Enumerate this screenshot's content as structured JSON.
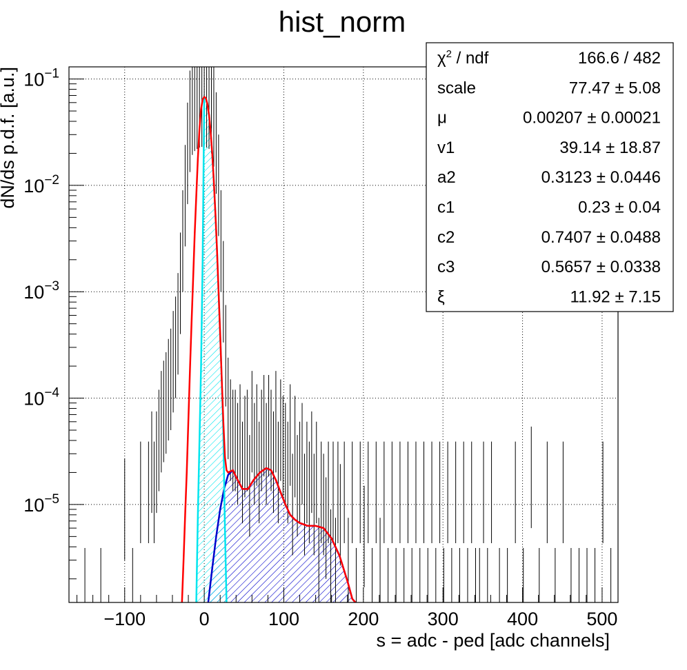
{
  "chart_data": {
    "type": "histogram",
    "title": "hist_norm",
    "xlabel": "s = adc - ped [adc channels]",
    "ylabel": "dN/ds p.d.f. [a.u.]",
    "xlim": [
      -170,
      520
    ],
    "ylim": [
      1.2e-06,
      0.13
    ],
    "y_scale": "log",
    "grid": true,
    "x_ticks": [
      -100,
      0,
      100,
      200,
      300,
      400,
      500
    ],
    "x_tick_labels": [
      "−100",
      "0",
      "100",
      "200",
      "300",
      "400",
      "500"
    ],
    "y_ticks": [
      {
        "value": 0.1,
        "base": "10",
        "exp": "−1"
      },
      {
        "value": 0.01,
        "base": "10",
        "exp": "−2"
      },
      {
        "value": 0.001,
        "base": "10",
        "exp": "−3"
      },
      {
        "value": 0.0001,
        "base": "10",
        "exp": "−4"
      },
      {
        "value": 1e-05,
        "base": "10",
        "exp": "−5"
      }
    ],
    "colors": {
      "data": "#000000",
      "total_fit": "#ff0000",
      "pedestal": "#00e5ee",
      "signal": "#0000cc",
      "grid": "#000000"
    },
    "series": [
      {
        "role": "data",
        "x": [
          -150,
          -130,
          -100,
          -90,
          -80,
          -70,
          -66,
          -63,
          -60,
          -57,
          -54,
          -51,
          -48,
          -45,
          -42,
          -39,
          -36,
          -33,
          -30,
          -27,
          -24,
          -21,
          -18,
          -15,
          -12,
          -9,
          -6,
          -3,
          0,
          3,
          6,
          9,
          12,
          15,
          18,
          21,
          24,
          27,
          30,
          33,
          36,
          39,
          42,
          45,
          48,
          51,
          54,
          57,
          60,
          63,
          66,
          69,
          72,
          75,
          78,
          81,
          84,
          87,
          90,
          93,
          96,
          99,
          102,
          105,
          108,
          111,
          114,
          117,
          120,
          123,
          126,
          129,
          132,
          135,
          138,
          141,
          144,
          147,
          150,
          153,
          156,
          159,
          162,
          165,
          168,
          171,
          176,
          181,
          186,
          191,
          196,
          201,
          206,
          211,
          216,
          221,
          226,
          231,
          236,
          241,
          246,
          251,
          256,
          261,
          266,
          271,
          276,
          281,
          286,
          291,
          296,
          301,
          306,
          311,
          316,
          321,
          326,
          331,
          336,
          341,
          346,
          351,
          356,
          361,
          371,
          381,
          391,
          401,
          411,
          421,
          431,
          441,
          451,
          461,
          471,
          481,
          491,
          501,
          511,
          518
        ],
        "y": [
          1.3e-06,
          1.3e-06,
          9e-06,
          1.3e-06,
          1.3e-05,
          1.3e-05,
          2.5e-05,
          1.3e-05,
          2.5e-05,
          4e-05,
          6e-05,
          7.5e-05,
          9e-05,
          0.00012,
          0.00015,
          0.00022,
          0.0003,
          0.0005,
          0.0012,
          0.003,
          0.008,
          0.02,
          0.04,
          0.058,
          0.063,
          0.066,
          0.068,
          0.069,
          0.07,
          0.068,
          0.066,
          0.06,
          0.045,
          0.025,
          0.01,
          0.003,
          0.001,
          0.00025,
          8e-05,
          5e-05,
          4e-05,
          4e-05,
          3e-05,
          4.5e-05,
          2e-05,
          3.5e-05,
          4e-05,
          1.5e-05,
          6e-05,
          3e-05,
          4.5e-05,
          2e-05,
          4e-05,
          5.5e-05,
          3e-05,
          5.5e-05,
          4e-05,
          2.5e-05,
          6e-05,
          2e-05,
          5e-05,
          3.5e-05,
          3e-05,
          2e-05,
          4.5e-05,
          1e-05,
          3.5e-05,
          1.5e-05,
          2e-05,
          3e-05,
          1e-05,
          2e-05,
          1.3e-05,
          2.5e-05,
          1e-05,
          2e-05,
          2.5e-06,
          1.3e-05,
          1e-05,
          6e-06,
          1.3e-05,
          3e-06,
          1.3e-05,
          2.5e-06,
          1.3e-05,
          8e-06,
          1.3e-05,
          2.5e-06,
          1.3e-05,
          1.3e-06,
          1.3e-05,
          5e-06,
          1.3e-05,
          1.3e-06,
          1.3e-05,
          2.5e-06,
          1.3e-05,
          1.3e-06,
          1.3e-05,
          1.3e-06,
          1.3e-05,
          1.3e-06,
          1.3e-05,
          1.3e-06,
          1.3e-05,
          1.3e-06,
          1.3e-05,
          1.3e-06,
          1.3e-05,
          1.3e-06,
          1.3e-05,
          1.3e-06,
          1.3e-05,
          1.3e-06,
          1.3e-05,
          1.3e-06,
          1.3e-05,
          1.3e-06,
          1.3e-05,
          1.3e-06,
          1.3e-06,
          1.3e-05,
          1.3e-06,
          1.3e-05,
          1.3e-06,
          1.3e-06,
          1.3e-05,
          1.3e-06,
          1.8e-05,
          1.3e-06,
          1.3e-05,
          1.3e-06,
          1.3e-05,
          1.3e-06,
          1.3e-06,
          1.3e-06,
          1.3e-06,
          1.3e-05,
          1.3e-06
        ]
      },
      {
        "role": "total-fit",
        "x": [
          -28,
          -26,
          -24,
          -22,
          -20,
          -18,
          -16,
          -14,
          -12,
          -10,
          -8,
          -6,
          -4,
          -2,
          0,
          2,
          4,
          6,
          8,
          10,
          12,
          14,
          16,
          18,
          20,
          22,
          24,
          26,
          28,
          30,
          36,
          42,
          48,
          55,
          62,
          70,
          78,
          84,
          90,
          96,
          102,
          108,
          114,
          120,
          130,
          140,
          150,
          160,
          170,
          180,
          186,
          190
        ],
        "y": [
          1.2e-06,
          3e-06,
          8e-06,
          2e-05,
          6e-05,
          0.00018,
          0.0005,
          0.0013,
          0.0035,
          0.008,
          0.018,
          0.034,
          0.052,
          0.064,
          0.068,
          0.066,
          0.058,
          0.046,
          0.032,
          0.02,
          0.011,
          0.0055,
          0.0025,
          0.001,
          0.0004,
          0.00015,
          6e-05,
          2.8e-05,
          2.1e-05,
          2e-05,
          2.1e-05,
          1.7e-05,
          1.4e-05,
          1.4e-05,
          1.7e-05,
          2e-05,
          2.2e-05,
          2.1e-05,
          1.7e-05,
          1.3e-05,
          1e-05,
          8e-06,
          7.2e-06,
          6.7e-06,
          6.3e-06,
          6.3e-06,
          6e-06,
          4.8e-06,
          3.3e-06,
          1.9e-06,
          1.3e-06,
          1.2e-06
        ]
      },
      {
        "role": "pedestal-fit",
        "x": [
          -10,
          -8,
          -6,
          -4,
          -2,
          0,
          2,
          4,
          6,
          8,
          10,
          12,
          14,
          16,
          18,
          20,
          22,
          24,
          26,
          28
        ],
        "y": [
          1.2e-06,
          8e-06,
          4e-05,
          0.0002,
          0.002,
          0.068,
          0.066,
          0.058,
          0.046,
          0.032,
          0.02,
          0.011,
          0.0055,
          0.0025,
          0.001,
          0.0004,
          0.00015,
          4.5e-05,
          6e-06,
          1.2e-06
        ]
      },
      {
        "role": "signal-fit",
        "x": [
          5,
          10,
          15,
          20,
          25,
          30,
          36,
          42,
          48,
          55,
          62,
          70,
          78,
          84,
          90,
          96,
          102,
          108,
          114,
          120,
          130,
          140,
          150,
          160,
          170,
          180,
          186,
          190
        ],
        "y": [
          1.2e-06,
          2.5e-06,
          5e-06,
          9e-06,
          1.4e-05,
          1.9e-05,
          2.1e-05,
          1.7e-05,
          1.4e-05,
          1.4e-05,
          1.7e-05,
          2e-05,
          2.2e-05,
          2.1e-05,
          1.7e-05,
          1.3e-05,
          1e-05,
          8e-06,
          7.2e-06,
          6.7e-06,
          6.3e-06,
          6.3e-06,
          6e-06,
          4.8e-06,
          3.3e-06,
          1.9e-06,
          1.3e-06,
          1.2e-06
        ]
      }
    ],
    "stats_box": [
      {
        "name_base": "χ",
        "name_sup": "2",
        "name_rest": " / ndf",
        "value": "166.6 / 482"
      },
      {
        "name_base": "scale",
        "name_sup": "",
        "name_rest": "",
        "value": "77.47 ± 5.08"
      },
      {
        "name_base": "μ",
        "name_sup": "",
        "name_rest": "",
        "value": "0.00207 ± 0.00021"
      },
      {
        "name_base": "v1",
        "name_sup": "",
        "name_rest": "",
        "value": "39.14 ± 18.87"
      },
      {
        "name_base": "a2",
        "name_sup": "",
        "name_rest": "",
        "value": "0.3123 ± 0.0446"
      },
      {
        "name_base": "c1",
        "name_sup": "",
        "name_rest": "",
        "value": "0.23 ± 0.04"
      },
      {
        "name_base": "c2",
        "name_sup": "",
        "name_rest": "",
        "value": "0.7407 ± 0.0488"
      },
      {
        "name_base": "c3",
        "name_sup": "",
        "name_rest": "",
        "value": "0.5657 ± 0.0338"
      },
      {
        "name_base": "ξ",
        "name_sup": "",
        "name_rest": "",
        "value": "11.92 ± 7.15"
      }
    ]
  }
}
